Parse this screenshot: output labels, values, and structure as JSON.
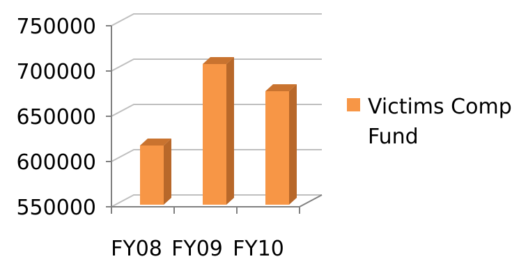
{
  "chart_data": {
    "type": "bar",
    "style": "3d-column",
    "categories": [
      "FY08",
      "FY09",
      "FY10"
    ],
    "series": [
      {
        "name": "Victims Comp Fund",
        "values": [
          620000,
          710000,
          680000
        ]
      }
    ],
    "ylim": [
      550000,
      750000
    ],
    "yticks": [
      550000,
      600000,
      650000,
      700000,
      750000
    ],
    "ytick_labels": [
      "550000",
      "600000",
      "650000",
      "700000",
      "750000"
    ],
    "grid": true,
    "legend_position": "right",
    "legend_lines": [
      "Victims Comp",
      "Fund"
    ],
    "colors": {
      "bar_front": "#F79646",
      "bar_side": "#B8682A",
      "bar_top": "#C9732F",
      "grid": "#BFBFBF",
      "axis": "#808080"
    }
  }
}
